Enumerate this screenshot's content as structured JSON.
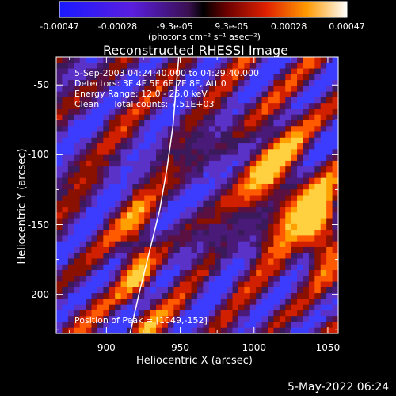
{
  "chart_data": {
    "type": "heatmap",
    "title": "Reconstructed RHESSI Image",
    "xlabel": "Heliocentric X (arcsec)",
    "ylabel": "Heliocentric Y (arcsec)",
    "xlim": [
      866,
      1057
    ],
    "ylim": [
      -228,
      -30
    ],
    "x_ticks": [
      "900",
      "950",
      "1000",
      "1050"
    ],
    "y_ticks": [
      "-50",
      "-100",
      "-150",
      "-200"
    ],
    "colorbar": {
      "tick_labels": [
        "-0.00047",
        "-0.00028",
        "-9.3e-05",
        "9.3e-05",
        "0.00028",
        "0.00047"
      ],
      "unit_label": "(photons cm⁻² s⁻¹ asec⁻²)",
      "range": [
        -0.00047,
        0.00047
      ]
    },
    "annotations": {
      "time": "5-Sep-2003 04:24:40.000 to 04:29:40.000",
      "detectors": "Detectors: 3F 4F 5F 6F 7F 8F, Att 0",
      "energy": "Energy Range: 12.0 - 25.0 keV",
      "clean": "Clean     Total counts: 7.51E+03",
      "peak": "Position of Peak = [1049,-152]"
    },
    "peak_position": [
      1049,
      -152
    ],
    "limb_curve": [
      [
        916,
        -228
      ],
      [
        922,
        -200
      ],
      [
        929,
        -170
      ],
      [
        936,
        -140
      ],
      [
        941,
        -110
      ],
      [
        945,
        -80
      ],
      [
        947,
        -55
      ],
      [
        949,
        -30
      ]
    ],
    "grid": false
  },
  "footer": {
    "date": "5-May-2022 06:24"
  }
}
